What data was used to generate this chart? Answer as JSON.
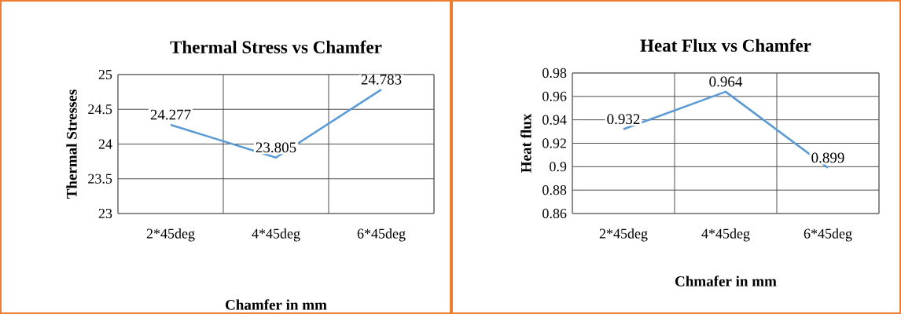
{
  "chart_data": [
    {
      "type": "line",
      "title": "Thermal Stress vs Chamfer",
      "xlabel": "Chamfer in mm",
      "ylabel": "Thermal Stresses",
      "categories": [
        "2*45deg",
        "4*45deg",
        "6*45deg"
      ],
      "values": [
        24.277,
        23.805,
        24.783
      ],
      "color": "#5b9bd5",
      "ylim": [
        23,
        25
      ],
      "yticks": [
        23,
        23.5,
        24,
        24.5,
        25
      ],
      "grid": true,
      "data_labels": true
    },
    {
      "type": "line",
      "title": "Heat Flux vs Chamfer",
      "xlabel": "Chmafer in mm",
      "ylabel": "Heat flux",
      "categories": [
        "2*45deg",
        "4*45deg",
        "6*45deg"
      ],
      "values": [
        0.932,
        0.964,
        0.899
      ],
      "color": "#5b9bd5",
      "ylim": [
        0.86,
        0.98
      ],
      "yticks": [
        0.86,
        0.88,
        0.9,
        0.92,
        0.94,
        0.96,
        0.98
      ],
      "grid": true,
      "data_labels": true
    }
  ]
}
